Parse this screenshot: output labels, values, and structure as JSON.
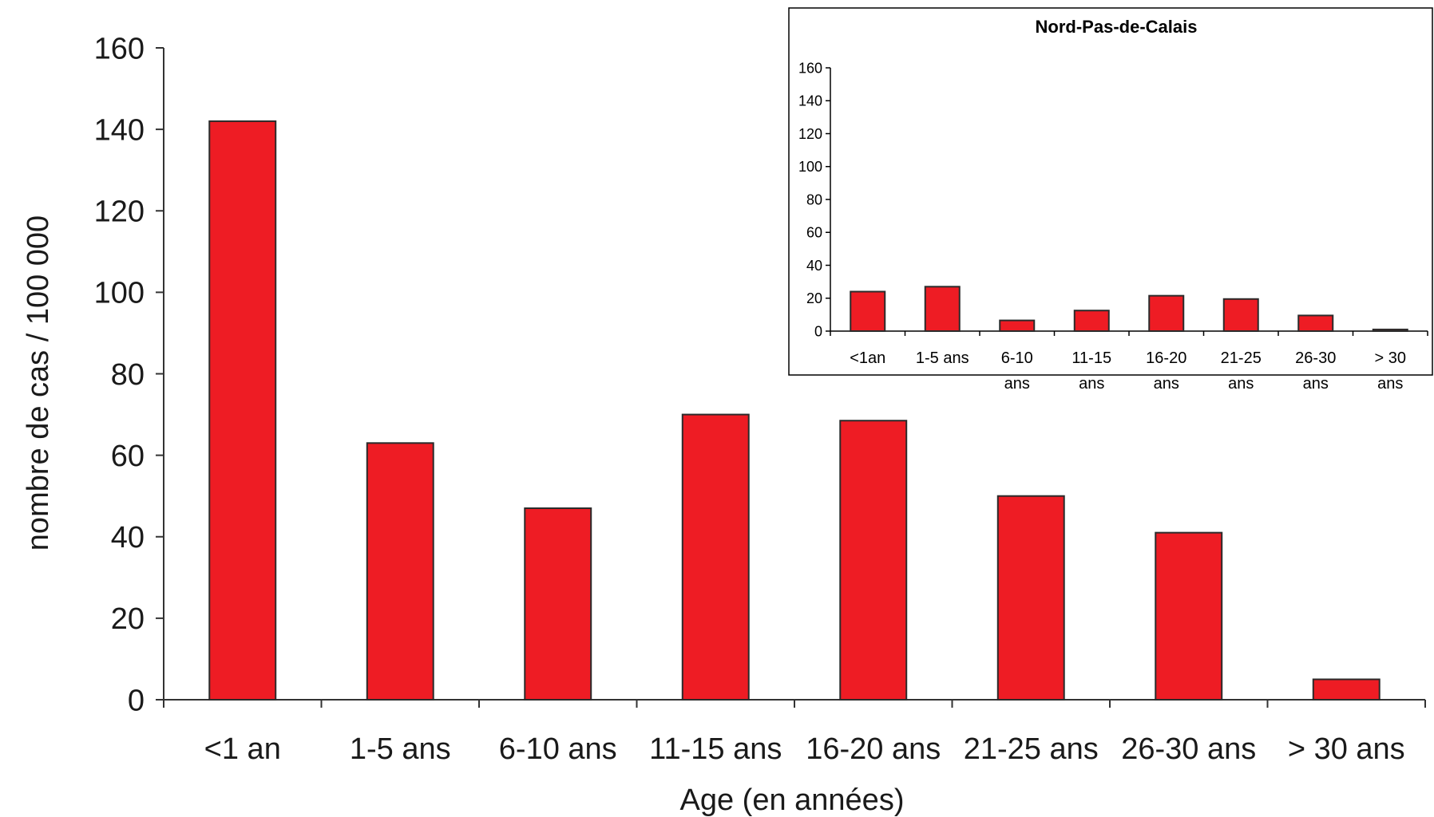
{
  "chart_data": [
    {
      "type": "bar",
      "title": "",
      "xlabel": "Age (en années)",
      "ylabel": "nombre de cas / 100 000",
      "ylim": [
        0,
        160
      ],
      "yticks": [
        "0",
        "20",
        "40",
        "60",
        "80",
        "100",
        "120",
        "140",
        "160"
      ],
      "categories": [
        "<1 an",
        "1-5 ans",
        "6-10 ans",
        "11-15 ans",
        "16-20 ans",
        "21-25 ans",
        "26-30 ans",
        "> 30 ans"
      ],
      "values": [
        142,
        63,
        47,
        70,
        68.5,
        50,
        41,
        5
      ],
      "color": "#ee1c24",
      "grid": false
    },
    {
      "type": "bar",
      "title": "Nord-Pas-de-Calais",
      "xlabel": "",
      "ylabel": "",
      "ylim": [
        0,
        160
      ],
      "yticks": [
        "0",
        "20",
        "40",
        "60",
        "80",
        "100",
        "120",
        "140",
        "160"
      ],
      "categories": [
        [
          "<1an"
        ],
        [
          "1-5 ans"
        ],
        [
          "6-10",
          "ans"
        ],
        [
          "11-15",
          "ans"
        ],
        [
          "16-20",
          "ans"
        ],
        [
          "21-25",
          "ans"
        ],
        [
          "26-30",
          "ans"
        ],
        [
          "> 30",
          "ans"
        ]
      ],
      "values": [
        24,
        27,
        6.5,
        12.5,
        21.5,
        19.5,
        9.5,
        1
      ],
      "color": "#ee1c24",
      "grid": false,
      "placement": "inset top-right"
    }
  ]
}
